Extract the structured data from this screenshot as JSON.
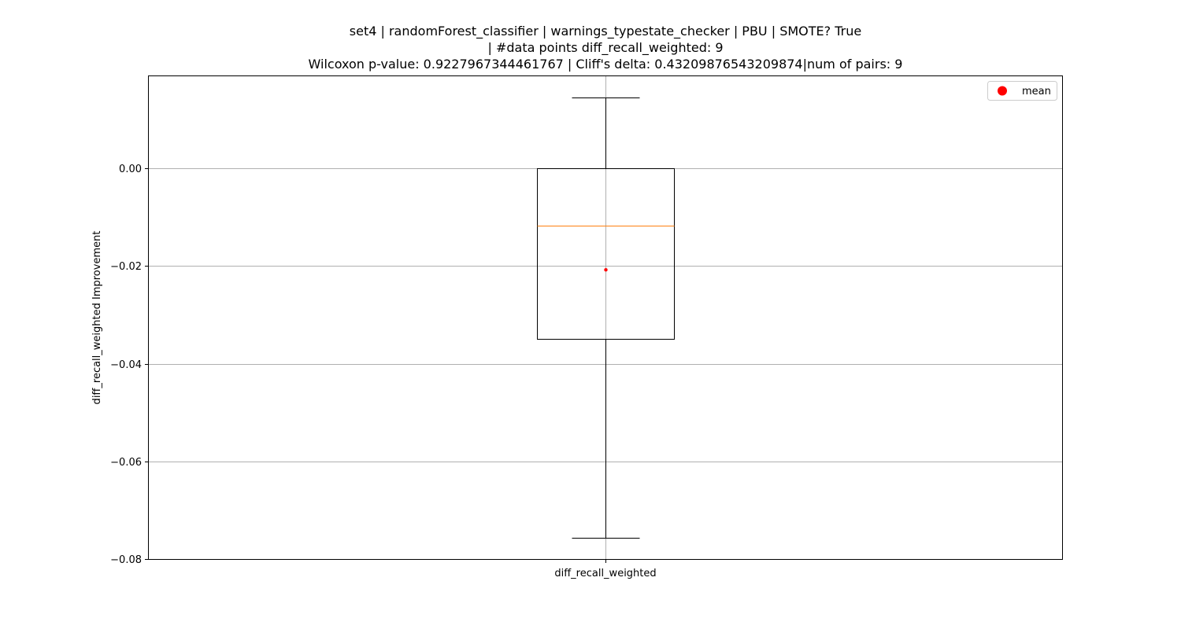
{
  "chart_data": {
    "type": "box",
    "title_lines": [
      "set4 | randomForest_classifier | warnings_typestate_checker | PBU | SMOTE? True",
      "| #data points diff_recall_weighted: 9",
      "Wilcoxon p-value: 0.9227967344461767 | Cliff's delta: 0.43209876543209874|num of pairs: 9"
    ],
    "xlabel": "",
    "ylabel": "diff_recall_weighted Improvement",
    "categories": [
      "diff_recall_weighted"
    ],
    "ylim": [
      -0.08,
      0.019
    ],
    "yticks": [
      0.0,
      -0.02,
      -0.04,
      -0.06,
      -0.08
    ],
    "ytick_labels": [
      "0.00",
      "−0.02",
      "−0.04",
      "−0.06",
      "−0.08"
    ],
    "grid": true,
    "legend": {
      "position": "top-right",
      "entries": [
        {
          "label": "mean",
          "color": "#ff0000",
          "marker": "circle"
        }
      ]
    },
    "boxes": [
      {
        "name": "diff_recall_weighted",
        "whisker_high": 0.0145,
        "q3": 0.0,
        "median": -0.0118,
        "q1": -0.0349,
        "whisker_low": -0.0757,
        "mean": -0.0208
      }
    ],
    "colors": {
      "box": "#000000",
      "median": "#ff7f0e",
      "mean": "#ff0000",
      "grid": "#b0b0b0"
    }
  }
}
